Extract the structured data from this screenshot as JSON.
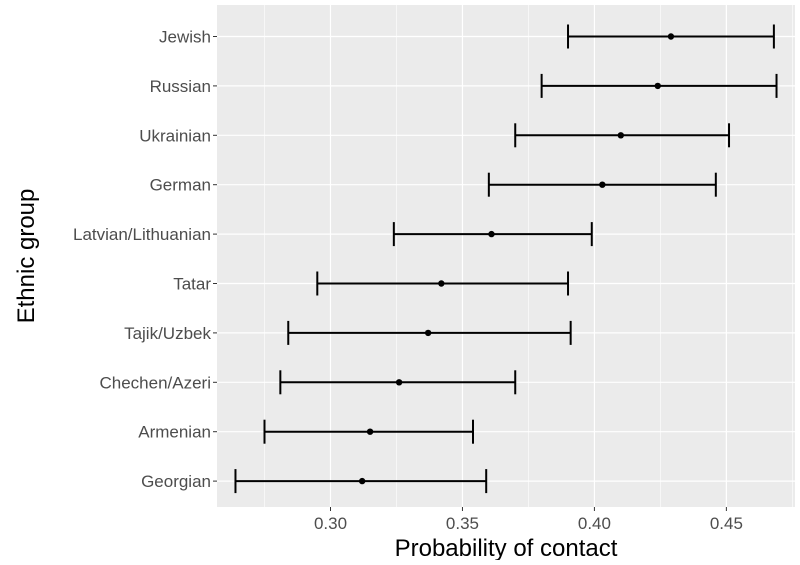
{
  "chart_data": {
    "type": "errorbar",
    "xlabel": "Probability of contact",
    "ylabel": "Ethnic group",
    "xlim": [
      0.257,
      0.476
    ],
    "x_ticks": [
      0.3,
      0.35,
      0.4,
      0.45
    ],
    "x_tick_labels": [
      "0.30",
      "0.35",
      "0.40",
      "0.45"
    ],
    "grid": true,
    "panel_background": "#ebebeb",
    "grid_color": "#ffffff",
    "mark_color": "#000000",
    "categories": [
      "Jewish",
      "Russian",
      "Ukrainian",
      "German",
      "Latvian/Lithuanian",
      "Tatar",
      "Tajik/Uzbek",
      "Chechen/Azeri",
      "Armenian",
      "Georgian"
    ],
    "estimates": [
      0.429,
      0.424,
      0.41,
      0.403,
      0.361,
      0.342,
      0.337,
      0.326,
      0.315,
      0.312
    ],
    "lower": [
      0.39,
      0.38,
      0.37,
      0.36,
      0.324,
      0.295,
      0.284,
      0.281,
      0.275,
      0.264
    ],
    "upper": [
      0.468,
      0.469,
      0.451,
      0.446,
      0.399,
      0.39,
      0.391,
      0.37,
      0.354,
      0.359
    ]
  }
}
